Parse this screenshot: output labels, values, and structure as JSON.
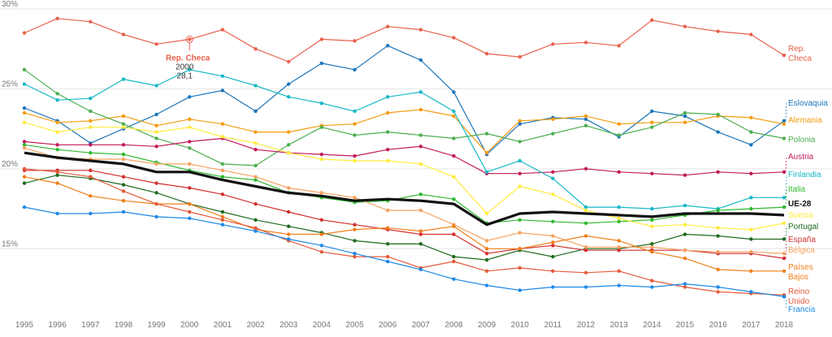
{
  "chart_data": {
    "type": "line",
    "x": [
      1995,
      1996,
      1997,
      1998,
      1999,
      2000,
      2001,
      2002,
      2003,
      2004,
      2005,
      2006,
      2007,
      2008,
      2009,
      2010,
      2011,
      2012,
      2013,
      2014,
      2015,
      2016,
      2017,
      2018
    ],
    "ylim": [
      11,
      30
    ],
    "yticks": [
      {
        "value": 15,
        "label": "15%"
      },
      {
        "value": 20,
        "label": "20%"
      },
      {
        "value": 25,
        "label": "25%"
      },
      {
        "value": 30,
        "label": "30%"
      }
    ],
    "grid": true,
    "series": [
      {
        "name": "Rep. Checa",
        "label": [
          "Rep.",
          "Checa"
        ],
        "color": "#e8604c",
        "bold": false,
        "values": [
          28.5,
          29.4,
          29.2,
          28.4,
          27.8,
          28.1,
          28.7,
          27.5,
          26.7,
          28.1,
          28.0,
          28.9,
          28.7,
          28.2,
          27.2,
          27.0,
          27.8,
          27.9,
          27.7,
          29.3,
          28.9,
          28.6,
          28.4,
          27.1
        ]
      },
      {
        "name": "Eslovaquia",
        "label": [
          "Eslovaquia"
        ],
        "color": "#1b75bb",
        "bold": false,
        "values": [
          23.8,
          23.0,
          21.6,
          22.5,
          23.4,
          24.5,
          24.9,
          23.6,
          25.3,
          26.6,
          26.2,
          27.7,
          26.8,
          24.8,
          20.9,
          22.8,
          23.2,
          23.1,
          22.0,
          23.6,
          23.3,
          22.3,
          21.5,
          23.0
        ]
      },
      {
        "name": "Alemania",
        "label": [
          "Alemania"
        ],
        "color": "#f39c12",
        "bold": false,
        "values": [
          23.5,
          22.9,
          23.0,
          23.3,
          22.7,
          23.1,
          22.8,
          22.3,
          22.3,
          22.7,
          22.8,
          23.5,
          23.7,
          23.3,
          21.0,
          23.0,
          23.1,
          23.3,
          22.8,
          22.9,
          22.9,
          23.3,
          23.2,
          22.8
        ]
      },
      {
        "name": "Polonia",
        "label": [
          "Polonia"
        ],
        "color": "#4caf50",
        "bold": false,
        "values": [
          26.2,
          24.7,
          23.6,
          22.8,
          21.9,
          21.3,
          20.3,
          20.2,
          21.5,
          22.6,
          22.1,
          22.3,
          22.1,
          21.9,
          22.2,
          21.7,
          22.2,
          22.7,
          22.1,
          22.6,
          23.5,
          23.4,
          22.3,
          21.9
        ]
      },
      {
        "name": "Austria",
        "label": [
          "Austria"
        ],
        "color": "#c2185b",
        "bold": false,
        "values": [
          21.7,
          21.5,
          21.5,
          21.5,
          21.4,
          21.7,
          21.9,
          21.2,
          21.0,
          20.9,
          20.8,
          21.2,
          21.4,
          20.8,
          19.7,
          19.7,
          19.8,
          20.0,
          19.8,
          19.7,
          19.6,
          19.8,
          19.7,
          19.8
        ]
      },
      {
        "name": "Finlandia",
        "label": [
          "Finlandia"
        ],
        "color": "#16b8c7",
        "bold": false,
        "values": [
          25.3,
          24.3,
          24.4,
          25.6,
          25.2,
          26.2,
          25.8,
          25.2,
          24.5,
          24.1,
          23.6,
          24.5,
          24.8,
          23.6,
          19.8,
          20.5,
          19.4,
          17.6,
          17.6,
          17.5,
          17.7,
          17.5,
          18.2,
          18.2
        ]
      },
      {
        "name": "Italia",
        "label": [
          "Italia"
        ],
        "color": "#2eb82e",
        "bold": false,
        "values": [
          21.5,
          21.2,
          21.0,
          20.9,
          20.4,
          19.9,
          19.5,
          19.3,
          18.5,
          18.2,
          17.9,
          18.0,
          18.4,
          18.1,
          16.6,
          16.8,
          16.7,
          16.6,
          16.7,
          16.8,
          17.1,
          17.4,
          17.5,
          17.6
        ]
      },
      {
        "name": "UE-28",
        "label": [
          "UE-28"
        ],
        "color": "#111111",
        "bold": true,
        "values": [
          21.0,
          20.7,
          20.5,
          20.3,
          19.8,
          19.8,
          19.3,
          18.9,
          18.5,
          18.3,
          18.0,
          18.1,
          18.0,
          17.8,
          16.5,
          17.2,
          17.3,
          17.2,
          17.1,
          17.0,
          17.2,
          17.2,
          17.2,
          17.1
        ]
      },
      {
        "name": "Suecia",
        "label": [
          "Suecia"
        ],
        "color": "#ffeb3b",
        "bold": false,
        "values": [
          22.9,
          22.3,
          22.6,
          22.6,
          22.3,
          22.6,
          22.0,
          21.6,
          21.0,
          20.6,
          20.5,
          20.5,
          20.3,
          19.5,
          17.2,
          18.9,
          18.4,
          17.4,
          16.9,
          16.4,
          16.5,
          16.3,
          16.2,
          16.6
        ]
      },
      {
        "name": "Portugal",
        "label": [
          "Portugal"
        ],
        "color": "#1e6b1e",
        "bold": false,
        "values": [
          19.1,
          19.6,
          19.4,
          19.0,
          18.5,
          17.8,
          17.3,
          16.8,
          16.4,
          16.0,
          15.5,
          15.3,
          15.3,
          14.5,
          14.3,
          14.9,
          14.5,
          15.0,
          15.0,
          15.3,
          15.9,
          15.8,
          15.6,
          15.6
        ]
      },
      {
        "name": "España",
        "label": [
          "España"
        ],
        "color": "#d32f2f",
        "bold": false,
        "values": [
          19.9,
          19.9,
          19.9,
          19.5,
          19.1,
          18.8,
          18.4,
          17.8,
          17.3,
          16.8,
          16.5,
          16.2,
          15.9,
          15.9,
          14.7,
          15.0,
          15.2,
          14.9,
          14.9,
          14.9,
          14.9,
          14.7,
          14.7,
          14.4
        ]
      },
      {
        "name": "Bélgica",
        "label": [
          "Bélgica"
        ],
        "color": "#f4a261",
        "bold": false,
        "values": [
          21.3,
          20.7,
          20.6,
          20.6,
          20.3,
          20.3,
          19.9,
          19.5,
          18.8,
          18.5,
          18.2,
          17.4,
          17.4,
          16.5,
          15.5,
          16.0,
          15.8,
          15.1,
          15.1,
          15.1,
          14.9,
          14.8,
          14.8,
          14.7
        ]
      },
      {
        "name": "Países Bajos",
        "label": [
          "Países",
          "Bajos"
        ],
        "color": "#ef7f1a",
        "bold": false,
        "values": [
          19.5,
          19.1,
          18.3,
          18.0,
          17.8,
          17.8,
          17.0,
          16.2,
          15.9,
          15.9,
          16.2,
          16.3,
          16.1,
          16.4,
          15.0,
          15.0,
          15.4,
          15.8,
          15.5,
          14.8,
          14.4,
          13.7,
          13.6,
          13.6
        ]
      },
      {
        "name": "Reino Unido",
        "label": [
          "Reino",
          "Unido"
        ],
        "color": "#e55a3b",
        "bold": false,
        "values": [
          20.0,
          19.8,
          19.5,
          18.6,
          17.8,
          17.3,
          16.8,
          16.3,
          15.5,
          14.8,
          14.5,
          14.5,
          13.8,
          14.2,
          13.6,
          13.8,
          13.6,
          13.5,
          13.6,
          13.0,
          12.6,
          12.3,
          12.2,
          12.1
        ]
      },
      {
        "name": "Francia",
        "label": [
          "Francia"
        ],
        "color": "#1e88e5",
        "bold": false,
        "values": [
          17.6,
          17.2,
          17.2,
          17.3,
          17.0,
          16.9,
          16.5,
          16.1,
          15.6,
          15.2,
          14.7,
          14.2,
          13.7,
          13.1,
          12.7,
          12.4,
          12.6,
          12.6,
          12.7,
          12.6,
          12.8,
          12.6,
          12.3,
          12.0
        ]
      }
    ],
    "annotation": {
      "series": "Rep. Checa",
      "title": "Rep. Checa",
      "year": "2000",
      "value": "28,1"
    }
  }
}
